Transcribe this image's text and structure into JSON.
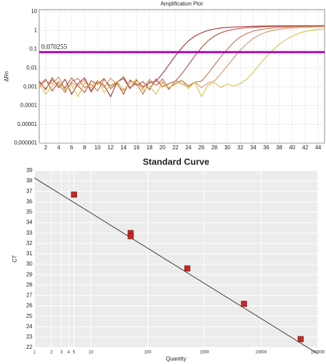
{
  "chart_data": [
    {
      "type": "line",
      "title": "Amplification Plot",
      "ylabel": "ΔRn",
      "log_y": true,
      "grid": true,
      "x": [
        1,
        2,
        3,
        4,
        5,
        6,
        7,
        8,
        9,
        10,
        11,
        12,
        13,
        14,
        15,
        16,
        17,
        18,
        19,
        20,
        21,
        22,
        23,
        24,
        25,
        26,
        27,
        28,
        29,
        30,
        31,
        32,
        33,
        34,
        35,
        36,
        37,
        38,
        39,
        40,
        41,
        42,
        43,
        44,
        45
      ],
      "xlim": [
        1,
        45
      ],
      "xticks": [
        2,
        4,
        6,
        8,
        10,
        12,
        14,
        16,
        18,
        20,
        22,
        24,
        26,
        28,
        30,
        32,
        34,
        36,
        38,
        40,
        42,
        44
      ],
      "ylim": [
        1e-06,
        10
      ],
      "yticks": [
        {
          "value": 1e-06,
          "label": "0,000001"
        },
        {
          "value": 1e-05,
          "label": "0,00001"
        },
        {
          "value": 0.0001,
          "label": "0,0001"
        },
        {
          "value": 0.001,
          "label": "0,001"
        },
        {
          "value": 0.01,
          "label": "0,01"
        },
        {
          "value": 0.1,
          "label": "0,1"
        },
        1,
        10
      ],
      "threshold": {
        "value": 0.070255,
        "color": "#b000b8"
      },
      "series": [
        {
          "color": "#a52a2a",
          "values": [
            0.002,
            0.0007,
            0.003,
            0.0009,
            0.0025,
            0.0004,
            0.0015,
            0.003,
            0.0006,
            0.002,
            0.0012,
            0.0003,
            0.0018,
            0.0028,
            0.0008,
            0.0022,
            0.001,
            0.0016,
            0.002,
            0.005,
            0.015,
            0.045,
            0.12,
            0.28,
            0.5,
            0.75,
            1.0,
            1.2,
            1.35,
            1.45,
            1.52,
            1.58,
            1.63,
            1.67,
            1.7,
            1.72,
            1.74,
            1.76,
            1.77,
            1.78,
            1.79,
            1.8,
            1.8,
            1.8,
            1.8
          ]
        },
        {
          "color": "#b4473a",
          "values": [
            0.0012,
            0.0025,
            0.0006,
            0.0018,
            0.0009,
            0.003,
            0.0011,
            0.0005,
            0.0021,
            0.0014,
            0.0027,
            0.0008,
            0.0016,
            0.0004,
            0.0023,
            0.0012,
            0.0019,
            0.0007,
            0.0026,
            0.001,
            0.0015,
            0.002,
            0.005,
            0.015,
            0.045,
            0.12,
            0.28,
            0.5,
            0.75,
            0.98,
            1.15,
            1.3,
            1.4,
            1.48,
            1.54,
            1.6,
            1.64,
            1.67,
            1.7,
            1.72,
            1.74,
            1.75,
            1.76,
            1.77,
            1.78
          ]
        },
        {
          "color": "#c0704a",
          "values": [
            0.0017,
            0.0008,
            0.0022,
            0.0013,
            0.0005,
            0.0019,
            0.0028,
            0.0009,
            0.0014,
            0.0006,
            0.0024,
            0.0011,
            0.0017,
            0.0035,
            0.0009,
            0.0015,
            0.0004,
            0.002,
            0.0012,
            0.0026,
            0.0008,
            0.0016,
            0.0022,
            0.0011,
            0.0018,
            0.002,
            0.005,
            0.014,
            0.04,
            0.1,
            0.24,
            0.45,
            0.7,
            0.92,
            1.1,
            1.25,
            1.36,
            1.45,
            1.52,
            1.58,
            1.62,
            1.65,
            1.68,
            1.7,
            1.72
          ]
        },
        {
          "color": "#cf8f62",
          "values": [
            0.0009,
            0.0021,
            0.0014,
            0.0033,
            0.0007,
            0.0016,
            0.0011,
            0.0024,
            0.0005,
            0.0018,
            0.0009,
            0.0029,
            0.0013,
            0.0006,
            0.002,
            0.0015,
            0.0008,
            0.0025,
            0.0012,
            0.0019,
            0.0007,
            0.0022,
            0.0014,
            0.001,
            0.0018,
            0.0009,
            0.0016,
            0.002,
            0.005,
            0.013,
            0.035,
            0.09,
            0.2,
            0.38,
            0.6,
            0.82,
            1.0,
            1.15,
            1.27,
            1.36,
            1.43,
            1.48,
            1.52,
            1.55,
            1.58
          ]
        },
        {
          "color": "#d8c040",
          "values": [
            0.0015,
            0.0004,
            0.0011,
            0.002,
            0.0006,
            0.0013,
            0.0003,
            0.0017,
            0.0009,
            0.0022,
            0.0005,
            0.0012,
            0.0019,
            0.0007,
            0.0014,
            0.0026,
            0.0006,
            0.0011,
            0.0004,
            0.0016,
            0.0009,
            0.0013,
            0.0021,
            0.0008,
            0.0018,
            0.0003,
            0.0012,
            0.0017,
            0.0009,
            0.0014,
            0.0011,
            0.0015,
            0.0025,
            0.006,
            0.016,
            0.04,
            0.09,
            0.18,
            0.32,
            0.5,
            0.7,
            0.88,
            1.02,
            1.13,
            1.22
          ]
        }
      ]
    },
    {
      "type": "scatter",
      "title": "Standard Curve",
      "xlabel": "Quantity",
      "ylabel": "CT",
      "log_x": true,
      "grid": true,
      "xlim": [
        1,
        100000
      ],
      "xticks": [
        1,
        2,
        3,
        4,
        5,
        10,
        100,
        1000,
        10000,
        100000
      ],
      "ylim": [
        22,
        39
      ],
      "yticks": [
        22,
        23,
        24,
        25,
        26,
        27,
        28,
        29,
        30,
        31,
        32,
        33,
        34,
        35,
        36,
        37,
        38,
        39
      ],
      "x": [
        5,
        50,
        50,
        500,
        5000,
        50000
      ],
      "values": [
        36.7,
        33.0,
        32.7,
        29.6,
        26.2,
        22.8
      ],
      "color": "#c0282a",
      "fit": {
        "x": [
          1,
          100000
        ],
        "values": [
          38.3,
          21.4
        ],
        "color": "#333333"
      }
    }
  ]
}
